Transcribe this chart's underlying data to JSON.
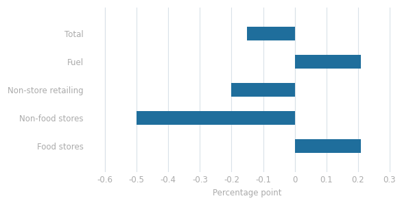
{
  "categories": [
    "Food stores",
    "Non-food stores",
    "Non-store retailing",
    "Fuel",
    "Total"
  ],
  "values": [
    0.21,
    -0.5,
    -0.2,
    0.21,
    -0.15
  ],
  "bar_color": "#1f6e9c",
  "xlabel": "Percentage point",
  "xlim": [
    -0.65,
    0.35
  ],
  "xticks": [
    -0.6,
    -0.5,
    -0.4,
    -0.3,
    -0.2,
    -0.1,
    0.0,
    0.1,
    0.2,
    0.3
  ],
  "background_color": "#ffffff",
  "label_color": "#aaaaaa",
  "grid_color": "#d9e1e8",
  "label_fontsize": 8.5,
  "xlabel_fontsize": 8.5
}
